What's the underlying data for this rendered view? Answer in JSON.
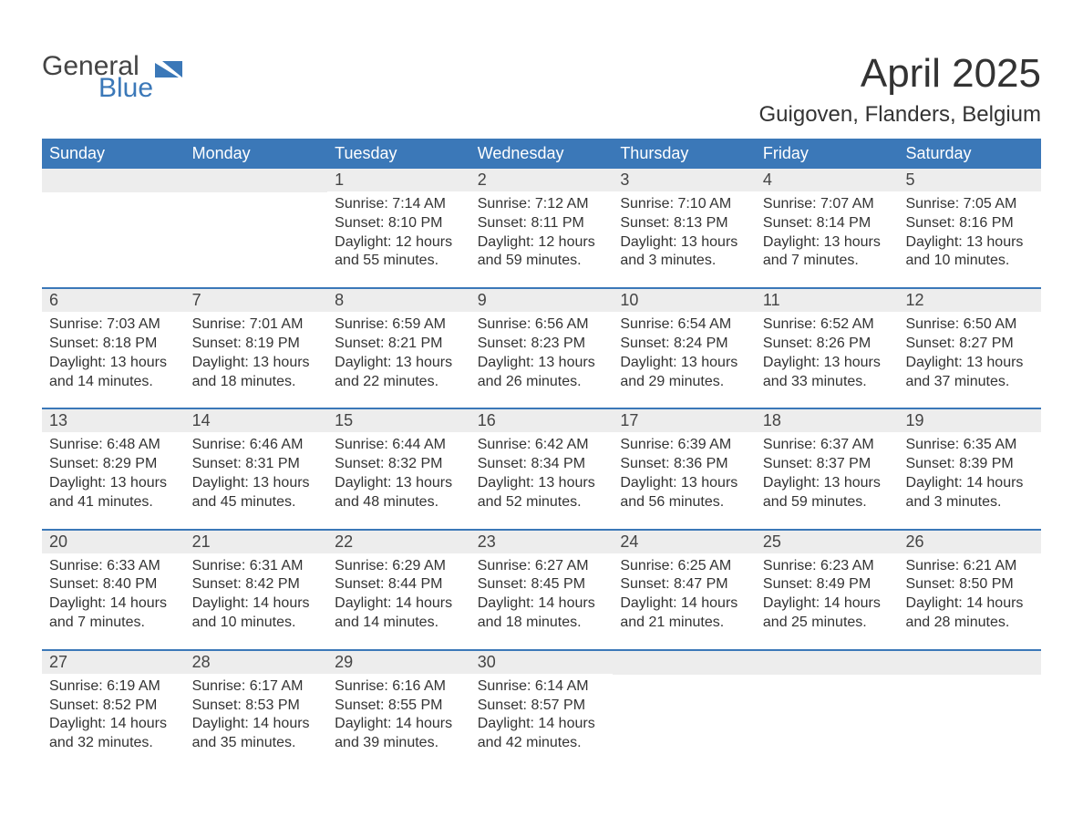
{
  "brand": {
    "general": "General",
    "blue": "Blue",
    "mark_color": "#3b78b8",
    "text_color": "#444444"
  },
  "title": {
    "month": "April 2025",
    "location": "Guigoven, Flanders, Belgium",
    "month_fontsize": 44,
    "location_fontsize": 24,
    "color": "#333333"
  },
  "calendar": {
    "header_bg": "#3b78b8",
    "header_fg": "#ffffff",
    "daynum_bg": "#ededed",
    "week_border_color": "#3b78b8",
    "text_fontsize": 16,
    "daynum_fontsize": 18,
    "dayheader_fontsize": 18,
    "day_names": [
      "Sunday",
      "Monday",
      "Tuesday",
      "Wednesday",
      "Thursday",
      "Friday",
      "Saturday"
    ],
    "weeks": [
      [
        {
          "day": "",
          "lines": []
        },
        {
          "day": "",
          "lines": []
        },
        {
          "day": "1",
          "lines": [
            "Sunrise: 7:14 AM",
            "Sunset: 8:10 PM",
            "Daylight: 12 hours",
            "and 55 minutes."
          ]
        },
        {
          "day": "2",
          "lines": [
            "Sunrise: 7:12 AM",
            "Sunset: 8:11 PM",
            "Daylight: 12 hours",
            "and 59 minutes."
          ]
        },
        {
          "day": "3",
          "lines": [
            "Sunrise: 7:10 AM",
            "Sunset: 8:13 PM",
            "Daylight: 13 hours",
            "and 3 minutes."
          ]
        },
        {
          "day": "4",
          "lines": [
            "Sunrise: 7:07 AM",
            "Sunset: 8:14 PM",
            "Daylight: 13 hours",
            "and 7 minutes."
          ]
        },
        {
          "day": "5",
          "lines": [
            "Sunrise: 7:05 AM",
            "Sunset: 8:16 PM",
            "Daylight: 13 hours",
            "and 10 minutes."
          ]
        }
      ],
      [
        {
          "day": "6",
          "lines": [
            "Sunrise: 7:03 AM",
            "Sunset: 8:18 PM",
            "Daylight: 13 hours",
            "and 14 minutes."
          ]
        },
        {
          "day": "7",
          "lines": [
            "Sunrise: 7:01 AM",
            "Sunset: 8:19 PM",
            "Daylight: 13 hours",
            "and 18 minutes."
          ]
        },
        {
          "day": "8",
          "lines": [
            "Sunrise: 6:59 AM",
            "Sunset: 8:21 PM",
            "Daylight: 13 hours",
            "and 22 minutes."
          ]
        },
        {
          "day": "9",
          "lines": [
            "Sunrise: 6:56 AM",
            "Sunset: 8:23 PM",
            "Daylight: 13 hours",
            "and 26 minutes."
          ]
        },
        {
          "day": "10",
          "lines": [
            "Sunrise: 6:54 AM",
            "Sunset: 8:24 PM",
            "Daylight: 13 hours",
            "and 29 minutes."
          ]
        },
        {
          "day": "11",
          "lines": [
            "Sunrise: 6:52 AM",
            "Sunset: 8:26 PM",
            "Daylight: 13 hours",
            "and 33 minutes."
          ]
        },
        {
          "day": "12",
          "lines": [
            "Sunrise: 6:50 AM",
            "Sunset: 8:27 PM",
            "Daylight: 13 hours",
            "and 37 minutes."
          ]
        }
      ],
      [
        {
          "day": "13",
          "lines": [
            "Sunrise: 6:48 AM",
            "Sunset: 8:29 PM",
            "Daylight: 13 hours",
            "and 41 minutes."
          ]
        },
        {
          "day": "14",
          "lines": [
            "Sunrise: 6:46 AM",
            "Sunset: 8:31 PM",
            "Daylight: 13 hours",
            "and 45 minutes."
          ]
        },
        {
          "day": "15",
          "lines": [
            "Sunrise: 6:44 AM",
            "Sunset: 8:32 PM",
            "Daylight: 13 hours",
            "and 48 minutes."
          ]
        },
        {
          "day": "16",
          "lines": [
            "Sunrise: 6:42 AM",
            "Sunset: 8:34 PM",
            "Daylight: 13 hours",
            "and 52 minutes."
          ]
        },
        {
          "day": "17",
          "lines": [
            "Sunrise: 6:39 AM",
            "Sunset: 8:36 PM",
            "Daylight: 13 hours",
            "and 56 minutes."
          ]
        },
        {
          "day": "18",
          "lines": [
            "Sunrise: 6:37 AM",
            "Sunset: 8:37 PM",
            "Daylight: 13 hours",
            "and 59 minutes."
          ]
        },
        {
          "day": "19",
          "lines": [
            "Sunrise: 6:35 AM",
            "Sunset: 8:39 PM",
            "Daylight: 14 hours",
            "and 3 minutes."
          ]
        }
      ],
      [
        {
          "day": "20",
          "lines": [
            "Sunrise: 6:33 AM",
            "Sunset: 8:40 PM",
            "Daylight: 14 hours",
            "and 7 minutes."
          ]
        },
        {
          "day": "21",
          "lines": [
            "Sunrise: 6:31 AM",
            "Sunset: 8:42 PM",
            "Daylight: 14 hours",
            "and 10 minutes."
          ]
        },
        {
          "day": "22",
          "lines": [
            "Sunrise: 6:29 AM",
            "Sunset: 8:44 PM",
            "Daylight: 14 hours",
            "and 14 minutes."
          ]
        },
        {
          "day": "23",
          "lines": [
            "Sunrise: 6:27 AM",
            "Sunset: 8:45 PM",
            "Daylight: 14 hours",
            "and 18 minutes."
          ]
        },
        {
          "day": "24",
          "lines": [
            "Sunrise: 6:25 AM",
            "Sunset: 8:47 PM",
            "Daylight: 14 hours",
            "and 21 minutes."
          ]
        },
        {
          "day": "25",
          "lines": [
            "Sunrise: 6:23 AM",
            "Sunset: 8:49 PM",
            "Daylight: 14 hours",
            "and 25 minutes."
          ]
        },
        {
          "day": "26",
          "lines": [
            "Sunrise: 6:21 AM",
            "Sunset: 8:50 PM",
            "Daylight: 14 hours",
            "and 28 minutes."
          ]
        }
      ],
      [
        {
          "day": "27",
          "lines": [
            "Sunrise: 6:19 AM",
            "Sunset: 8:52 PM",
            "Daylight: 14 hours",
            "and 32 minutes."
          ]
        },
        {
          "day": "28",
          "lines": [
            "Sunrise: 6:17 AM",
            "Sunset: 8:53 PM",
            "Daylight: 14 hours",
            "and 35 minutes."
          ]
        },
        {
          "day": "29",
          "lines": [
            "Sunrise: 6:16 AM",
            "Sunset: 8:55 PM",
            "Daylight: 14 hours",
            "and 39 minutes."
          ]
        },
        {
          "day": "30",
          "lines": [
            "Sunrise: 6:14 AM",
            "Sunset: 8:57 PM",
            "Daylight: 14 hours",
            "and 42 minutes."
          ]
        },
        {
          "day": "",
          "lines": []
        },
        {
          "day": "",
          "lines": []
        },
        {
          "day": "",
          "lines": []
        }
      ]
    ]
  }
}
